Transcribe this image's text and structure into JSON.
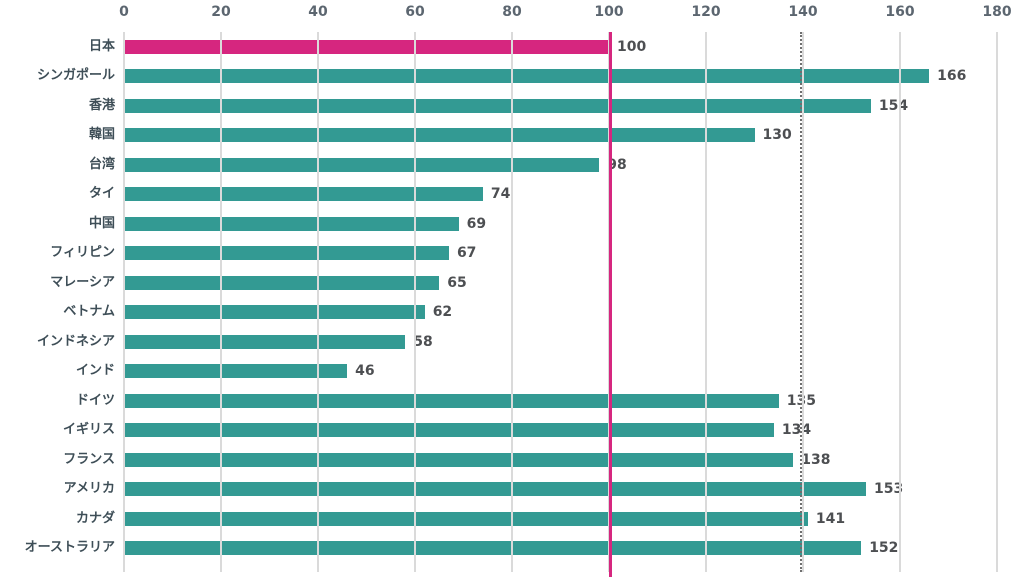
{
  "chart_data": {
    "type": "bar",
    "orientation": "horizontal",
    "categories": [
      "日本",
      "シンガポール",
      "香港",
      "韓国",
      "台湾",
      "タイ",
      "中国",
      "フィリピン",
      "マレーシア",
      "ベトナム",
      "インドネシア",
      "インド",
      "ドイツ",
      "イギリス",
      "フランス",
      "アメリカ",
      "カナダ",
      "オーストラリア"
    ],
    "values": [
      100,
      166,
      154,
      130,
      98,
      74,
      69,
      67,
      65,
      62,
      58,
      46,
      135,
      134,
      138,
      153,
      141,
      152
    ],
    "value_labels": [
      "100",
      "166",
      "154",
      "130",
      "98",
      "74",
      "69",
      "67",
      "65",
      "62",
      "58",
      "46",
      "135",
      "134",
      "138",
      "153",
      "141",
      "152"
    ],
    "highlight_index": 0,
    "x_ticks": [
      0,
      20,
      40,
      60,
      80,
      100,
      120,
      140,
      160,
      180
    ],
    "xlim": [
      0,
      180
    ],
    "grid": true,
    "legend": false,
    "axis_position": "top",
    "reference_lines": [
      {
        "x": 100,
        "style": "solid",
        "color": "#d6267f"
      },
      {
        "x": 140,
        "style": "dotted",
        "color": "#6f6f6f"
      }
    ],
    "colors": {
      "bar_default": "#339a93",
      "bar_highlight": "#d6267f",
      "gridline": "#dadada",
      "tick_label": "#5c6670",
      "category_label": "#3e4e57",
      "value_label": "#4d4f52",
      "background": "#ffffff"
    }
  }
}
